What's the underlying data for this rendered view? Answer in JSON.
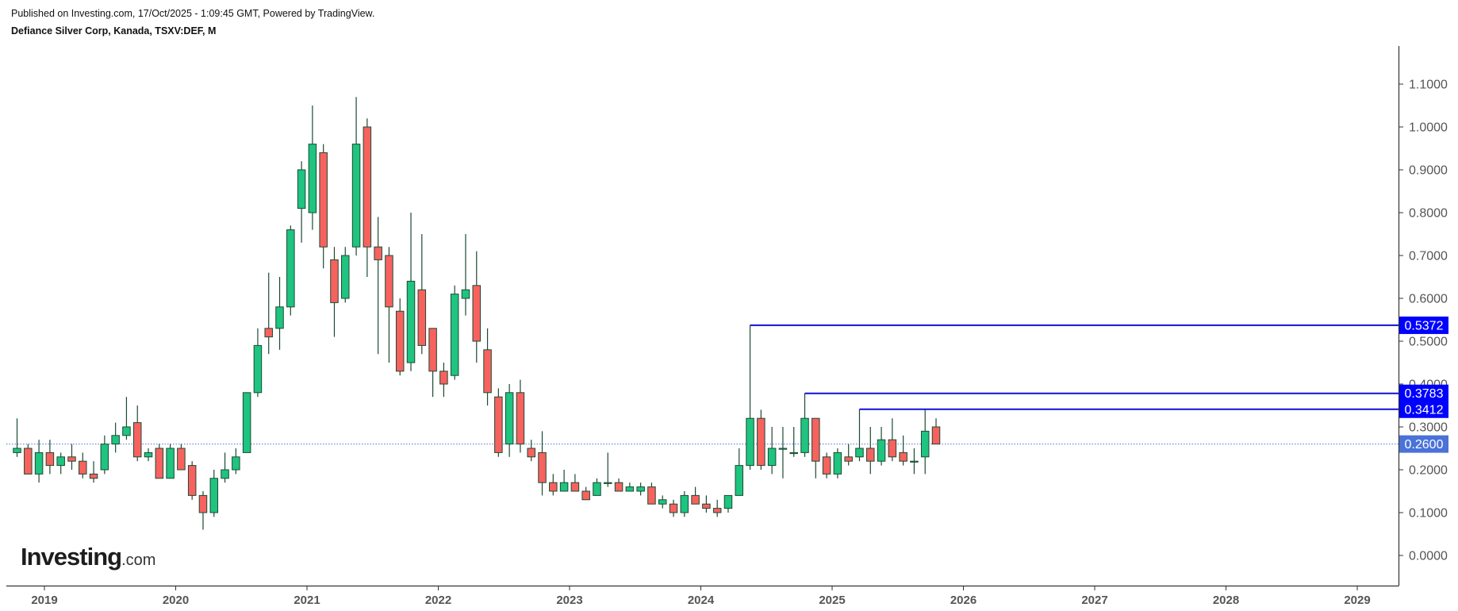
{
  "header": {
    "published": "Published on Investing.com, 17/Oct/2025 - 1:09:45 GMT, Powered by TradingView.",
    "symbol": "Defiance Silver Corp, Kanada, TSXV:DEF, M"
  },
  "logo": {
    "brand": "Investing",
    "domain": ".com"
  },
  "colors": {
    "up": "#1ec47f",
    "down": "#f7625f",
    "wick": "#1c4a33",
    "level_line": "#1010d8",
    "level_label_bg": "#0000ff",
    "current_label_bg": "#4a72d8",
    "axis_text": "#555555"
  },
  "chart_data": {
    "type": "candlestick",
    "timeframe": "M",
    "y_range": [
      -0.07,
      1.18
    ],
    "y_ticks": [
      "1.1000",
      "1.0000",
      "0.9000",
      "0.8000",
      "0.7000",
      "0.6000",
      "0.5000",
      "0.4000",
      "0.3000",
      "0.2000",
      "0.1000",
      "0.0000"
    ],
    "x_ticks": [
      "2019",
      "2020",
      "2021",
      "2022",
      "2023",
      "2024",
      "2025",
      "2026",
      "2027",
      "2028",
      "2029"
    ],
    "current_price": {
      "value": 0.26,
      "label": "0.2600"
    },
    "levels": [
      {
        "value": 0.5372,
        "label": "0.5372",
        "from": "2024-05"
      },
      {
        "value": 0.3783,
        "label": "0.3783",
        "from": "2024-10"
      },
      {
        "value": 0.3412,
        "label": "0.3412",
        "from": "2025-03"
      }
    ],
    "candles": [
      {
        "t": "2018-10",
        "o": 0.24,
        "h": 0.32,
        "l": 0.23,
        "c": 0.25
      },
      {
        "t": "2018-11",
        "o": 0.25,
        "h": 0.26,
        "l": 0.19,
        "c": 0.19
      },
      {
        "t": "2018-12",
        "o": 0.19,
        "h": 0.27,
        "l": 0.17,
        "c": 0.24
      },
      {
        "t": "2019-01",
        "o": 0.24,
        "h": 0.27,
        "l": 0.19,
        "c": 0.21
      },
      {
        "t": "2019-02",
        "o": 0.21,
        "h": 0.24,
        "l": 0.19,
        "c": 0.23
      },
      {
        "t": "2019-03",
        "o": 0.23,
        "h": 0.26,
        "l": 0.2,
        "c": 0.22
      },
      {
        "t": "2019-04",
        "o": 0.22,
        "h": 0.24,
        "l": 0.18,
        "c": 0.19
      },
      {
        "t": "2019-05",
        "o": 0.19,
        "h": 0.22,
        "l": 0.17,
        "c": 0.18
      },
      {
        "t": "2019-06",
        "o": 0.2,
        "h": 0.28,
        "l": 0.19,
        "c": 0.26
      },
      {
        "t": "2019-07",
        "o": 0.26,
        "h": 0.31,
        "l": 0.24,
        "c": 0.28
      },
      {
        "t": "2019-08",
        "o": 0.28,
        "h": 0.37,
        "l": 0.27,
        "c": 0.3
      },
      {
        "t": "2019-09",
        "o": 0.31,
        "h": 0.35,
        "l": 0.22,
        "c": 0.23
      },
      {
        "t": "2019-10",
        "o": 0.23,
        "h": 0.25,
        "l": 0.22,
        "c": 0.24
      },
      {
        "t": "2019-11",
        "o": 0.25,
        "h": 0.26,
        "l": 0.18,
        "c": 0.18
      },
      {
        "t": "2019-12",
        "o": 0.18,
        "h": 0.26,
        "l": 0.18,
        "c": 0.25
      },
      {
        "t": "2020-01",
        "o": 0.25,
        "h": 0.26,
        "l": 0.2,
        "c": 0.2
      },
      {
        "t": "2020-02",
        "o": 0.21,
        "h": 0.22,
        "l": 0.13,
        "c": 0.14
      },
      {
        "t": "2020-03",
        "o": 0.14,
        "h": 0.15,
        "l": 0.06,
        "c": 0.1
      },
      {
        "t": "2020-04",
        "o": 0.1,
        "h": 0.2,
        "l": 0.09,
        "c": 0.18
      },
      {
        "t": "2020-05",
        "o": 0.18,
        "h": 0.24,
        "l": 0.17,
        "c": 0.2
      },
      {
        "t": "2020-06",
        "o": 0.2,
        "h": 0.25,
        "l": 0.19,
        "c": 0.23
      },
      {
        "t": "2020-07",
        "o": 0.24,
        "h": 0.38,
        "l": 0.24,
        "c": 0.38
      },
      {
        "t": "2020-08",
        "o": 0.38,
        "h": 0.53,
        "l": 0.37,
        "c": 0.49
      },
      {
        "t": "2020-09",
        "o": 0.53,
        "h": 0.66,
        "l": 0.47,
        "c": 0.51
      },
      {
        "t": "2020-10",
        "o": 0.53,
        "h": 0.65,
        "l": 0.48,
        "c": 0.58
      },
      {
        "t": "2020-11",
        "o": 0.58,
        "h": 0.77,
        "l": 0.56,
        "c": 0.76
      },
      {
        "t": "2020-12",
        "o": 0.81,
        "h": 0.92,
        "l": 0.73,
        "c": 0.9
      },
      {
        "t": "2021-01",
        "o": 0.8,
        "h": 1.05,
        "l": 0.76,
        "c": 0.96
      },
      {
        "t": "2021-02",
        "o": 0.94,
        "h": 0.96,
        "l": 0.67,
        "c": 0.72
      },
      {
        "t": "2021-03",
        "o": 0.69,
        "h": 0.72,
        "l": 0.51,
        "c": 0.59
      },
      {
        "t": "2021-04",
        "o": 0.6,
        "h": 0.72,
        "l": 0.59,
        "c": 0.7
      },
      {
        "t": "2021-05",
        "o": 0.72,
        "h": 1.07,
        "l": 0.7,
        "c": 0.96
      },
      {
        "t": "2021-06",
        "o": 1.0,
        "h": 1.02,
        "l": 0.65,
        "c": 0.72
      },
      {
        "t": "2021-07",
        "o": 0.72,
        "h": 0.79,
        "l": 0.47,
        "c": 0.69
      },
      {
        "t": "2021-08",
        "o": 0.7,
        "h": 0.72,
        "l": 0.45,
        "c": 0.58
      },
      {
        "t": "2021-09",
        "o": 0.57,
        "h": 0.6,
        "l": 0.42,
        "c": 0.43
      },
      {
        "t": "2021-10",
        "o": 0.45,
        "h": 0.8,
        "l": 0.43,
        "c": 0.64
      },
      {
        "t": "2021-11",
        "o": 0.62,
        "h": 0.75,
        "l": 0.47,
        "c": 0.49
      },
      {
        "t": "2021-12",
        "o": 0.53,
        "h": 0.53,
        "l": 0.37,
        "c": 0.43
      },
      {
        "t": "2022-01",
        "o": 0.43,
        "h": 0.45,
        "l": 0.37,
        "c": 0.4
      },
      {
        "t": "2022-02",
        "o": 0.42,
        "h": 0.63,
        "l": 0.41,
        "c": 0.61
      },
      {
        "t": "2022-03",
        "o": 0.6,
        "h": 0.75,
        "l": 0.56,
        "c": 0.62
      },
      {
        "t": "2022-04",
        "o": 0.63,
        "h": 0.71,
        "l": 0.45,
        "c": 0.5
      },
      {
        "t": "2022-05",
        "o": 0.48,
        "h": 0.53,
        "l": 0.35,
        "c": 0.38
      },
      {
        "t": "2022-06",
        "o": 0.37,
        "h": 0.39,
        "l": 0.23,
        "c": 0.24
      },
      {
        "t": "2022-07",
        "o": 0.26,
        "h": 0.4,
        "l": 0.23,
        "c": 0.38
      },
      {
        "t": "2022-08",
        "o": 0.38,
        "h": 0.41,
        "l": 0.24,
        "c": 0.26
      },
      {
        "t": "2022-09",
        "o": 0.25,
        "h": 0.27,
        "l": 0.22,
        "c": 0.23
      },
      {
        "t": "2022-10",
        "o": 0.24,
        "h": 0.29,
        "l": 0.14,
        "c": 0.17
      },
      {
        "t": "2022-11",
        "o": 0.17,
        "h": 0.19,
        "l": 0.14,
        "c": 0.15
      },
      {
        "t": "2022-12",
        "o": 0.15,
        "h": 0.2,
        "l": 0.15,
        "c": 0.17
      },
      {
        "t": "2023-01",
        "o": 0.17,
        "h": 0.19,
        "l": 0.15,
        "c": 0.15
      },
      {
        "t": "2023-02",
        "o": 0.15,
        "h": 0.16,
        "l": 0.13,
        "c": 0.13
      },
      {
        "t": "2023-03",
        "o": 0.14,
        "h": 0.18,
        "l": 0.14,
        "c": 0.17
      },
      {
        "t": "2023-04",
        "o": 0.17,
        "h": 0.24,
        "l": 0.16,
        "c": 0.17
      },
      {
        "t": "2023-05",
        "o": 0.17,
        "h": 0.18,
        "l": 0.15,
        "c": 0.15
      },
      {
        "t": "2023-06",
        "o": 0.15,
        "h": 0.17,
        "l": 0.15,
        "c": 0.16
      },
      {
        "t": "2023-07",
        "o": 0.15,
        "h": 0.17,
        "l": 0.14,
        "c": 0.16
      },
      {
        "t": "2023-08",
        "o": 0.16,
        "h": 0.17,
        "l": 0.12,
        "c": 0.12
      },
      {
        "t": "2023-09",
        "o": 0.12,
        "h": 0.14,
        "l": 0.11,
        "c": 0.13
      },
      {
        "t": "2023-10",
        "o": 0.12,
        "h": 0.13,
        "l": 0.09,
        "c": 0.1
      },
      {
        "t": "2023-11",
        "o": 0.1,
        "h": 0.15,
        "l": 0.09,
        "c": 0.14
      },
      {
        "t": "2023-12",
        "o": 0.14,
        "h": 0.16,
        "l": 0.12,
        "c": 0.12
      },
      {
        "t": "2024-01",
        "o": 0.12,
        "h": 0.14,
        "l": 0.1,
        "c": 0.11
      },
      {
        "t": "2024-02",
        "o": 0.11,
        "h": 0.13,
        "l": 0.09,
        "c": 0.1
      },
      {
        "t": "2024-03",
        "o": 0.11,
        "h": 0.14,
        "l": 0.1,
        "c": 0.14
      },
      {
        "t": "2024-04",
        "o": 0.14,
        "h": 0.25,
        "l": 0.14,
        "c": 0.21
      },
      {
        "t": "2024-05",
        "o": 0.21,
        "h": 0.5372,
        "l": 0.2,
        "c": 0.32
      },
      {
        "t": "2024-06",
        "o": 0.32,
        "h": 0.34,
        "l": 0.2,
        "c": 0.21
      },
      {
        "t": "2024-07",
        "o": 0.21,
        "h": 0.3,
        "l": 0.19,
        "c": 0.25
      },
      {
        "t": "2024-08",
        "o": 0.25,
        "h": 0.3,
        "l": 0.18,
        "c": 0.25
      },
      {
        "t": "2024-09",
        "o": 0.24,
        "h": 0.3,
        "l": 0.23,
        "c": 0.24
      },
      {
        "t": "2024-10",
        "o": 0.24,
        "h": 0.3783,
        "l": 0.23,
        "c": 0.32
      },
      {
        "t": "2024-11",
        "o": 0.32,
        "h": 0.32,
        "l": 0.18,
        "c": 0.22
      },
      {
        "t": "2024-12",
        "o": 0.23,
        "h": 0.24,
        "l": 0.18,
        "c": 0.19
      },
      {
        "t": "2025-01",
        "o": 0.19,
        "h": 0.25,
        "l": 0.18,
        "c": 0.24
      },
      {
        "t": "2025-02",
        "o": 0.23,
        "h": 0.26,
        "l": 0.21,
        "c": 0.22
      },
      {
        "t": "2025-03",
        "o": 0.23,
        "h": 0.3412,
        "l": 0.22,
        "c": 0.25
      },
      {
        "t": "2025-04",
        "o": 0.25,
        "h": 0.3,
        "l": 0.19,
        "c": 0.22
      },
      {
        "t": "2025-05",
        "o": 0.22,
        "h": 0.3,
        "l": 0.21,
        "c": 0.27
      },
      {
        "t": "2025-06",
        "o": 0.27,
        "h": 0.32,
        "l": 0.22,
        "c": 0.23
      },
      {
        "t": "2025-07",
        "o": 0.24,
        "h": 0.28,
        "l": 0.21,
        "c": 0.22
      },
      {
        "t": "2025-08",
        "o": 0.22,
        "h": 0.25,
        "l": 0.19,
        "c": 0.22
      },
      {
        "t": "2025-09",
        "o": 0.23,
        "h": 0.34,
        "l": 0.19,
        "c": 0.29
      },
      {
        "t": "2025-10",
        "o": 0.3,
        "h": 0.32,
        "l": 0.26,
        "c": 0.26
      }
    ]
  }
}
